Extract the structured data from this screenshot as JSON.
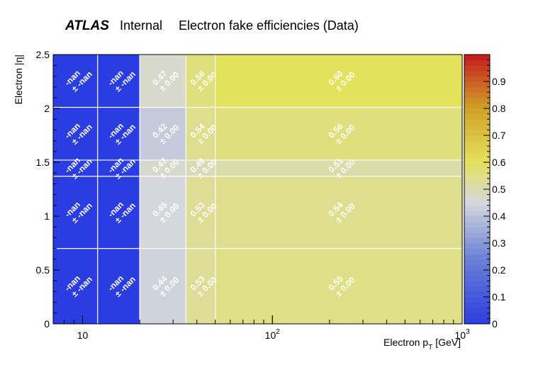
{
  "header": {
    "brand": "ATLAS",
    "tag": "Internal",
    "title": "Electron fake efficiencies (Data)"
  },
  "chart_data": {
    "type": "heatmap",
    "title": "Electron fake efficiencies (Data)",
    "xlabel_main": "Electron p",
    "xlabel_sub": "T",
    "xlabel_unit": "[GeV]",
    "ylabel": "Electron |η|",
    "x_scale": "log",
    "xlim": [
      7,
      1000
    ],
    "ylim": [
      0,
      2.5
    ],
    "zlim": [
      0,
      1
    ],
    "x_edges": [
      7,
      12,
      20,
      35,
      50,
      1000
    ],
    "y_edges": [
      0,
      0.7,
      1.37,
      1.52,
      2.01,
      2.5
    ],
    "x_ticks": [
      {
        "value": 10,
        "label": "10"
      },
      {
        "value": 100,
        "label": "10",
        "exp": "2"
      },
      {
        "value": 1000,
        "label": "10",
        "exp": "3"
      }
    ],
    "y_ticks": [
      {
        "value": 0,
        "label": "0"
      },
      {
        "value": 0.5,
        "label": "0.5"
      },
      {
        "value": 1,
        "label": "1"
      },
      {
        "value": 1.5,
        "label": "1.5"
      },
      {
        "value": 2,
        "label": "2"
      },
      {
        "value": 2.5,
        "label": "2.5"
      }
    ],
    "z_ticks": [
      {
        "value": 0,
        "label": "0"
      },
      {
        "value": 0.1,
        "label": "0.1"
      },
      {
        "value": 0.2,
        "label": "0.2"
      },
      {
        "value": 0.3,
        "label": "0.3"
      },
      {
        "value": 0.4,
        "label": "0.4"
      },
      {
        "value": 0.5,
        "label": "0.5"
      },
      {
        "value": 0.6,
        "label": "0.6"
      },
      {
        "value": 0.7,
        "label": "0.7"
      },
      {
        "value": 0.8,
        "label": "0.8"
      },
      {
        "value": 0.9,
        "label": "0.9"
      }
    ],
    "cells": [
      [
        {
          "value": null,
          "label": "-nan",
          "err": "± -nan"
        },
        {
          "value": null,
          "label": "-nan",
          "err": "± -nan"
        },
        {
          "value": 0.44,
          "label": "0.44",
          "err": "± 0.00"
        },
        {
          "value": 0.53,
          "label": "0.53",
          "err": "± 0.00"
        },
        {
          "value": 0.55,
          "label": "0.55",
          "err": "± 0.00"
        }
      ],
      [
        {
          "value": null,
          "label": "-nan",
          "err": "± -nan"
        },
        {
          "value": null,
          "label": "-nan",
          "err": "± -nan"
        },
        {
          "value": 0.45,
          "label": "0.45",
          "err": "± 0.00"
        },
        {
          "value": 0.53,
          "label": "0.53",
          "err": "± 0.00"
        },
        {
          "value": 0.54,
          "label": "0.54",
          "err": "± 0.00"
        }
      ],
      [
        {
          "value": null,
          "label": "-nan",
          "err": "± -nan"
        },
        {
          "value": null,
          "label": "-nan",
          "err": "± -nan"
        },
        {
          "value": 0.47,
          "label": "0.47",
          "err": "± 0.00"
        },
        {
          "value": 0.49,
          "label": "0.49",
          "err": "± 0.00"
        },
        {
          "value": 0.51,
          "label": "0.51",
          "err": "± 0.00"
        }
      ],
      [
        {
          "value": null,
          "label": "-nan",
          "err": "± -nan"
        },
        {
          "value": null,
          "label": "-nan",
          "err": "± -nan"
        },
        {
          "value": 0.42,
          "label": "0.42",
          "err": "± 0.00"
        },
        {
          "value": 0.54,
          "label": "0.54",
          "err": "± 0.00"
        },
        {
          "value": 0.56,
          "label": "0.56",
          "err": "± 0.00"
        }
      ],
      [
        {
          "value": null,
          "label": "-nan",
          "err": "± -nan"
        },
        {
          "value": null,
          "label": "-nan",
          "err": "± -nan"
        },
        {
          "value": 0.47,
          "label": "0.47",
          "err": "± 0.00"
        },
        {
          "value": 0.56,
          "label": "0.56",
          "err": "± 0.00"
        },
        {
          "value": 0.6,
          "label": "0.60",
          "err": "± 0.00"
        }
      ]
    ],
    "grid": true,
    "legend": "none",
    "colorbar": "right",
    "colors": {
      "nan_fill": "#2a3de0",
      "grid": "#ffffff",
      "axis": "#000000",
      "cell_text": "#ffffff"
    }
  }
}
